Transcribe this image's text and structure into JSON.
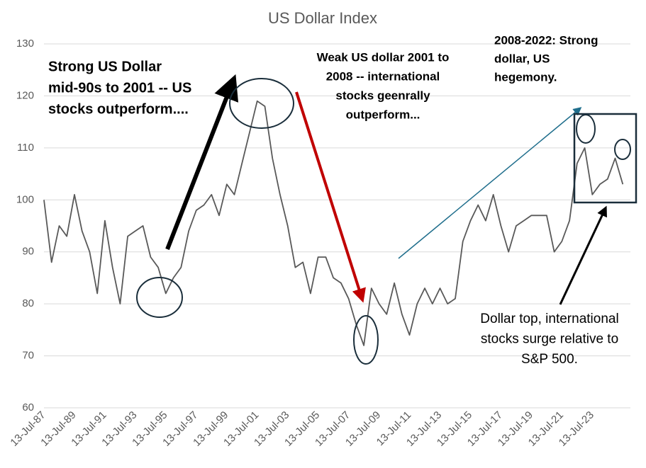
{
  "chart_data": {
    "type": "line",
    "title": "US Dollar Index",
    "x": [
      "13-Jul-87",
      "13-Jan-88",
      "13-Jul-88",
      "13-Jan-89",
      "13-Jul-89",
      "13-Jan-90",
      "13-Jul-90",
      "13-Jan-91",
      "13-Jul-91",
      "13-Jan-92",
      "13-Jul-92",
      "13-Jan-93",
      "13-Jul-93",
      "13-Jan-94",
      "13-Jul-94",
      "13-Jan-95",
      "13-Jul-95",
      "13-Jan-96",
      "13-Jul-96",
      "13-Jan-97",
      "13-Jul-97",
      "13-Jan-98",
      "13-Jul-98",
      "13-Jan-99",
      "13-Jul-99",
      "13-Jan-00",
      "13-Jul-00",
      "13-Jan-01",
      "13-Jul-01",
      "13-Jan-02",
      "13-Jul-02",
      "13-Jan-03",
      "13-Jul-03",
      "13-Jan-04",
      "13-Jul-04",
      "13-Jan-05",
      "13-Jul-05",
      "13-Jan-06",
      "13-Jul-06",
      "13-Jan-07",
      "13-Jul-07",
      "13-Jan-08",
      "13-Jul-08",
      "13-Jan-09",
      "13-Jul-09",
      "13-Jan-10",
      "13-Jul-10",
      "13-Jan-11",
      "13-Jul-11",
      "13-Jan-12",
      "13-Jul-12",
      "13-Jan-13",
      "13-Jul-13",
      "13-Jan-14",
      "13-Jul-14",
      "13-Jan-15",
      "13-Jul-15",
      "13-Jan-16",
      "13-Jul-16",
      "13-Jan-17",
      "13-Jul-17",
      "13-Jan-18",
      "13-Jul-18",
      "13-Jan-19",
      "13-Jul-19",
      "13-Jan-20",
      "13-Jul-20",
      "13-Jan-21",
      "13-Jul-21",
      "13-Jan-22",
      "13-Jul-22",
      "13-Jan-23",
      "13-Jul-23",
      "13-Jan-24",
      "13-Jul-24",
      "13-Jan-25",
      "13-Jul-25"
    ],
    "series": [
      {
        "color": "#595959",
        "values": [
          100,
          88,
          95,
          93,
          101,
          94,
          90,
          82,
          96,
          87,
          80,
          93,
          94,
          95,
          89,
          87,
          82,
          85,
          87,
          94,
          98,
          99,
          101,
          97,
          103,
          101,
          107,
          113,
          119,
          118,
          108,
          101,
          95,
          87,
          88,
          82,
          89,
          89,
          85,
          84,
          81,
          76,
          72,
          83,
          80,
          78,
          84,
          78,
          74,
          80,
          83,
          80,
          83,
          80,
          81,
          92,
          96,
          99,
          96,
          101,
          95,
          90,
          95,
          96,
          97,
          97,
          97,
          90,
          92,
          96,
          107,
          110,
          101,
          103,
          104,
          108,
          103
        ]
      }
    ],
    "xlim": [
      "13-Jul-87",
      "13-Jan-26"
    ],
    "xticks": [
      "13-Jul-87",
      "13-Jul-89",
      "13-Jul-91",
      "13-Jul-93",
      "13-Jul-95",
      "13-Jul-97",
      "13-Jul-99",
      "13-Jul-01",
      "13-Jul-03",
      "13-Jul-05",
      "13-Jul-07",
      "13-Jul-09",
      "13-Jul-11",
      "13-Jul-13",
      "13-Jul-15",
      "13-Jul-17",
      "13-Jul-19",
      "13-Jul-21",
      "13-Jul-23"
    ],
    "ylim": [
      60,
      130
    ],
    "yticks": [
      60,
      70,
      80,
      90,
      100,
      110,
      120,
      130
    ],
    "grid": true,
    "annotations": [
      [
        "Strong US Dollar",
        "mid-90s to 2001 -- US",
        "stocks outperform...."
      ],
      [
        "Weak US dollar 2001 to",
        "2008  -- international",
        "stocks geenrally",
        "outperform..."
      ],
      [
        "2008-2022: Strong",
        "dollar, US",
        "hegemony."
      ],
      [
        "Dollar top, international",
        "stocks surge relative to",
        "S&P 500."
      ]
    ]
  }
}
